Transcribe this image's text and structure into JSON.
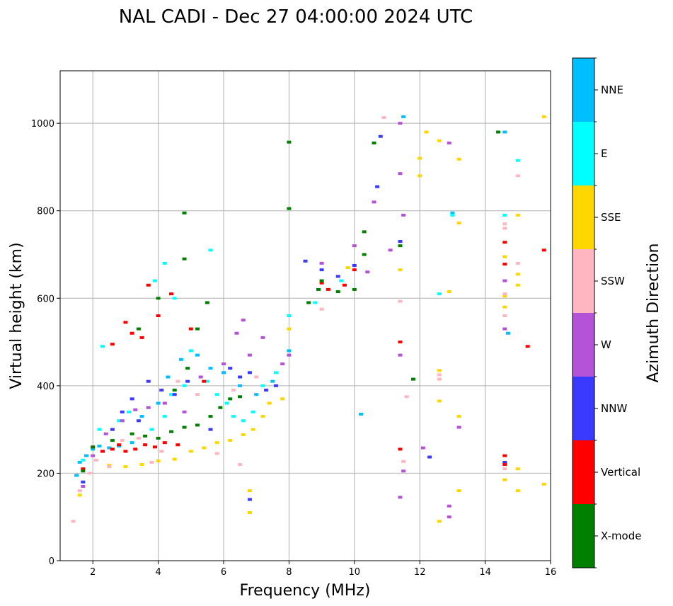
{
  "chart_data": {
    "type": "scatter",
    "title": "NAL CADI - Dec 27 04:00:00 2024 UTC",
    "xlabel": "Frequency (MHz)",
    "ylabel": "Virtual height (km)",
    "xlim": [
      1.0,
      16.0
    ],
    "ylim": [
      0,
      1120
    ],
    "xticks": [
      2,
      4,
      6,
      8,
      10,
      12,
      14,
      16
    ],
    "yticks": [
      0,
      200,
      400,
      600,
      800,
      1000
    ],
    "grid": true,
    "colorbar": {
      "label": "Azimuth Direction",
      "categories": [
        {
          "name": "X-mode",
          "color": "#008000"
        },
        {
          "name": "Vertical",
          "color": "#ff0000"
        },
        {
          "name": "NNW",
          "color": "#3a3aff"
        },
        {
          "name": "W",
          "color": "#b452d8"
        },
        {
          "name": "SSW",
          "color": "#ffb6c1"
        },
        {
          "name": "SSE",
          "color": "#ffd700"
        },
        {
          "name": "E",
          "color": "#00ffff"
        },
        {
          "name": "NNE",
          "color": "#00bfff"
        }
      ]
    },
    "series": [
      {
        "name": "NNE",
        "points": [
          [
            1.5,
            195
          ],
          [
            1.6,
            225
          ],
          [
            1.8,
            240
          ],
          [
            2.0,
            255
          ],
          [
            2.2,
            262
          ],
          [
            2.5,
            258
          ],
          [
            2.8,
            262
          ],
          [
            3.2,
            270
          ],
          [
            3.5,
            330
          ],
          [
            4.0,
            360
          ],
          [
            4.3,
            420
          ],
          [
            4.7,
            460
          ],
          [
            5.2,
            470
          ],
          [
            5.6,
            440
          ],
          [
            6.0,
            430
          ],
          [
            6.5,
            400
          ],
          [
            7.0,
            380
          ],
          [
            7.5,
            410
          ],
          [
            8.0,
            480
          ],
          [
            10.2,
            335
          ],
          [
            11.5,
            1015
          ],
          [
            14.6,
            980
          ],
          [
            14.7,
            520
          ],
          [
            13.0,
            795
          ]
        ]
      },
      {
        "name": "E",
        "points": [
          [
            1.7,
            230
          ],
          [
            2.2,
            300
          ],
          [
            2.8,
            320
          ],
          [
            3.1,
            340
          ],
          [
            3.8,
            300
          ],
          [
            4.2,
            330
          ],
          [
            4.4,
            380
          ],
          [
            4.8,
            400
          ],
          [
            5.0,
            480
          ],
          [
            5.5,
            410
          ],
          [
            5.8,
            380
          ],
          [
            6.1,
            360
          ],
          [
            6.3,
            330
          ],
          [
            6.6,
            320
          ],
          [
            6.9,
            340
          ],
          [
            7.2,
            400
          ],
          [
            7.6,
            430
          ],
          [
            8.0,
            560
          ],
          [
            8.8,
            590
          ],
          [
            9.6,
            640
          ],
          [
            12.6,
            610
          ],
          [
            13.0,
            790
          ],
          [
            14.6,
            790
          ],
          [
            15.0,
            915
          ],
          [
            5.6,
            710
          ],
          [
            4.5,
            600
          ],
          [
            4.2,
            680
          ],
          [
            3.9,
            640
          ],
          [
            2.3,
            490
          ]
        ]
      },
      {
        "name": "SSE",
        "points": [
          [
            1.6,
            150
          ],
          [
            2.5,
            218
          ],
          [
            3.0,
            215
          ],
          [
            3.5,
            220
          ],
          [
            4.0,
            228
          ],
          [
            4.5,
            232
          ],
          [
            5.0,
            250
          ],
          [
            5.4,
            258
          ],
          [
            5.8,
            270
          ],
          [
            6.2,
            275
          ],
          [
            6.6,
            288
          ],
          [
            6.9,
            300
          ],
          [
            7.2,
            330
          ],
          [
            7.4,
            360
          ],
          [
            7.8,
            370
          ],
          [
            6.8,
            110
          ],
          [
            6.8,
            160
          ],
          [
            8.0,
            530
          ],
          [
            9.0,
            640
          ],
          [
            9.8,
            670
          ],
          [
            12.0,
            880
          ],
          [
            12.0,
            920
          ],
          [
            12.2,
            980
          ],
          [
            12.6,
            960
          ],
          [
            13.2,
            918
          ],
          [
            12.6,
            435
          ],
          [
            12.6,
            365
          ],
          [
            12.6,
            90
          ],
          [
            13.2,
            330
          ],
          [
            13.2,
            160
          ],
          [
            12.9,
            615
          ],
          [
            13.2,
            772
          ],
          [
            14.6,
            580
          ],
          [
            14.6,
            605
          ],
          [
            14.6,
            695
          ],
          [
            15.0,
            790
          ],
          [
            15.0,
            655
          ],
          [
            15.0,
            630
          ],
          [
            15.0,
            210
          ],
          [
            15.0,
            160
          ],
          [
            14.6,
            185
          ],
          [
            15.8,
            1015
          ],
          [
            15.8,
            175
          ],
          [
            11.4,
            665
          ]
        ]
      },
      {
        "name": "SSW",
        "points": [
          [
            1.4,
            90
          ],
          [
            1.6,
            160
          ],
          [
            1.9,
            200
          ],
          [
            2.1,
            230
          ],
          [
            2.5,
            215
          ],
          [
            2.9,
            275
          ],
          [
            3.4,
            280
          ],
          [
            3.8,
            225
          ],
          [
            4.1,
            250
          ],
          [
            4.6,
            410
          ],
          [
            5.2,
            380
          ],
          [
            5.8,
            245
          ],
          [
            6.3,
            390
          ],
          [
            6.5,
            220
          ],
          [
            7.0,
            420
          ],
          [
            9.0,
            575
          ],
          [
            10.9,
            1013
          ],
          [
            11.6,
            375
          ],
          [
            12.6,
            415
          ],
          [
            12.6,
            425
          ],
          [
            14.6,
            210
          ],
          [
            14.6,
            560
          ],
          [
            14.6,
            610
          ],
          [
            14.6,
            770
          ],
          [
            14.6,
            760
          ],
          [
            15.0,
            880
          ],
          [
            15.0,
            680
          ],
          [
            11.4,
            593
          ],
          [
            11.5,
            227
          ]
        ]
      },
      {
        "name": "W",
        "points": [
          [
            1.7,
            170
          ],
          [
            2.0,
            240
          ],
          [
            2.4,
            290
          ],
          [
            2.9,
            320
          ],
          [
            3.3,
            345
          ],
          [
            3.7,
            350
          ],
          [
            4.2,
            360
          ],
          [
            4.8,
            340
          ],
          [
            5.3,
            420
          ],
          [
            6.0,
            450
          ],
          [
            6.4,
            520
          ],
          [
            6.6,
            550
          ],
          [
            6.8,
            470
          ],
          [
            7.2,
            510
          ],
          [
            7.8,
            450
          ],
          [
            8.0,
            470
          ],
          [
            9.0,
            680
          ],
          [
            10.0,
            720
          ],
          [
            10.4,
            660
          ],
          [
            10.6,
            820
          ],
          [
            11.1,
            710
          ],
          [
            11.4,
            1000
          ],
          [
            11.4,
            885
          ],
          [
            11.5,
            790
          ],
          [
            11.4,
            470
          ],
          [
            11.5,
            205
          ],
          [
            11.4,
            145
          ],
          [
            12.1,
            258
          ],
          [
            12.9,
            125
          ],
          [
            12.9,
            100
          ],
          [
            13.2,
            305
          ],
          [
            12.9,
            955
          ],
          [
            14.6,
            640
          ],
          [
            14.6,
            530
          ]
        ]
      },
      {
        "name": "NNW",
        "points": [
          [
            1.7,
            180
          ],
          [
            2.3,
            250
          ],
          [
            2.6,
            300
          ],
          [
            2.9,
            340
          ],
          [
            3.2,
            370
          ],
          [
            3.4,
            320
          ],
          [
            3.7,
            410
          ],
          [
            4.1,
            390
          ],
          [
            4.5,
            380
          ],
          [
            4.9,
            410
          ],
          [
            5.6,
            300
          ],
          [
            6.2,
            440
          ],
          [
            6.5,
            420
          ],
          [
            6.8,
            430
          ],
          [
            7.3,
            390
          ],
          [
            7.6,
            400
          ],
          [
            6.8,
            140
          ],
          [
            8.5,
            685
          ],
          [
            9.0,
            665
          ],
          [
            9.5,
            650
          ],
          [
            10.0,
            675
          ],
          [
            10.8,
            970
          ],
          [
            10.7,
            855
          ],
          [
            11.4,
            730
          ],
          [
            12.3,
            237
          ],
          [
            14.6,
            225
          ]
        ]
      },
      {
        "name": "Vertical",
        "points": [
          [
            1.7,
            210
          ],
          [
            2.0,
            260
          ],
          [
            2.3,
            250
          ],
          [
            2.6,
            255
          ],
          [
            2.8,
            265
          ],
          [
            3.0,
            250
          ],
          [
            3.3,
            255
          ],
          [
            3.6,
            265
          ],
          [
            3.9,
            260
          ],
          [
            4.2,
            270
          ],
          [
            4.6,
            265
          ],
          [
            3.2,
            520
          ],
          [
            3.5,
            510
          ],
          [
            2.6,
            495
          ],
          [
            3.0,
            545
          ],
          [
            4.0,
            560
          ],
          [
            3.7,
            630
          ],
          [
            4.4,
            610
          ],
          [
            5.0,
            530
          ],
          [
            5.4,
            410
          ],
          [
            9.0,
            635
          ],
          [
            9.2,
            620
          ],
          [
            9.7,
            630
          ],
          [
            10.0,
            665
          ],
          [
            11.4,
            500
          ],
          [
            11.4,
            255
          ],
          [
            14.6,
            240
          ],
          [
            14.6,
            220
          ],
          [
            14.6,
            678
          ],
          [
            14.6,
            728
          ],
          [
            15.3,
            490
          ],
          [
            15.8,
            710
          ]
        ]
      },
      {
        "name": "X-mode",
        "points": [
          [
            1.7,
            205
          ],
          [
            2.0,
            260
          ],
          [
            2.6,
            275
          ],
          [
            3.2,
            290
          ],
          [
            3.6,
            285
          ],
          [
            4.0,
            280
          ],
          [
            4.4,
            295
          ],
          [
            4.8,
            305
          ],
          [
            5.2,
            310
          ],
          [
            5.6,
            330
          ],
          [
            5.9,
            350
          ],
          [
            6.2,
            370
          ],
          [
            6.5,
            375
          ],
          [
            4.5,
            390
          ],
          [
            4.9,
            440
          ],
          [
            5.2,
            530
          ],
          [
            5.5,
            590
          ],
          [
            4.8,
            690
          ],
          [
            4.0,
            600
          ],
          [
            3.4,
            530
          ],
          [
            4.8,
            795
          ],
          [
            8.0,
            805
          ],
          [
            8.0,
            957
          ],
          [
            8.6,
            590
          ],
          [
            8.9,
            620
          ],
          [
            9.0,
            640
          ],
          [
            9.5,
            615
          ],
          [
            10.0,
            620
          ],
          [
            10.3,
            700
          ],
          [
            10.3,
            752
          ],
          [
            10.6,
            955
          ],
          [
            11.4,
            720
          ],
          [
            11.8,
            415
          ],
          [
            14.4,
            980
          ]
        ]
      }
    ]
  }
}
